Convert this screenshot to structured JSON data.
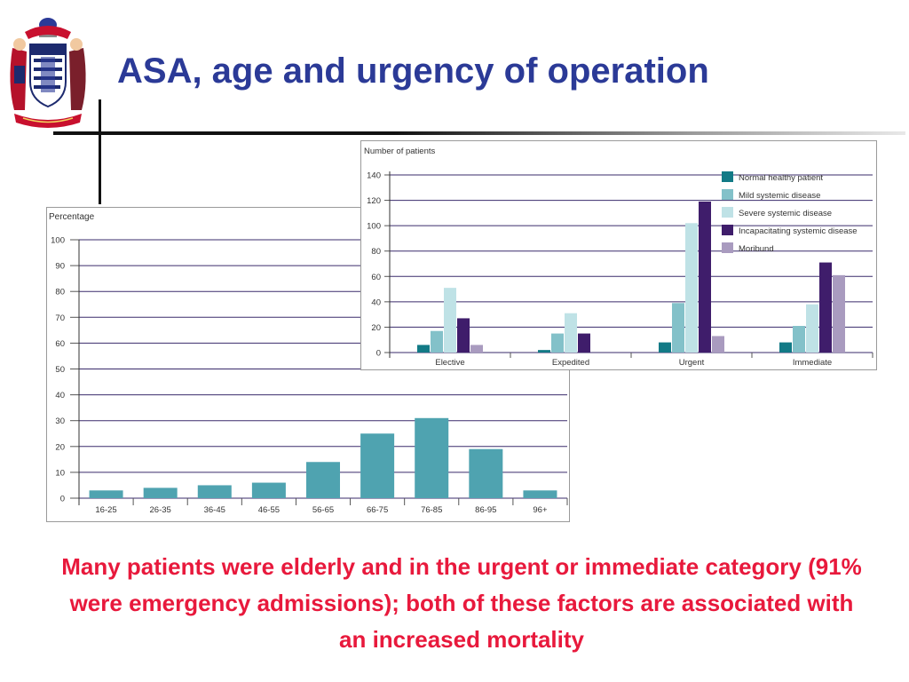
{
  "title": "ASA, age and urgency of operation",
  "caption": "Many patients were elderly and in the urgent or immediate category (91% were emergency admissions); both of these factors are associated with an increased mortality",
  "logo": {
    "name": "coat-of-arms-logo"
  },
  "chart_data": [
    {
      "id": "age-chart",
      "type": "bar",
      "ylabel": "Percentage",
      "ylim": [
        0,
        100
      ],
      "yticks": [
        0,
        10,
        20,
        30,
        40,
        50,
        60,
        70,
        80,
        90,
        100
      ],
      "grid": true,
      "categories": [
        "16-25",
        "26-35",
        "36-45",
        "46-55",
        "56-65",
        "66-75",
        "76-85",
        "86-95",
        "96+"
      ],
      "values": [
        3,
        4,
        5,
        6,
        14,
        25,
        31,
        19,
        3
      ],
      "color": "#4fa3b0"
    },
    {
      "id": "asa-chart",
      "type": "bar",
      "ylabel": "Number of patients",
      "ylim": [
        0,
        140
      ],
      "yticks": [
        0,
        20,
        40,
        60,
        80,
        100,
        120,
        140
      ],
      "grid": true,
      "legend_position": "top-right",
      "categories": [
        "Elective",
        "Expedited",
        "Urgent",
        "Immediate"
      ],
      "series": [
        {
          "name": "Normal healthy patient",
          "values": [
            6,
            2,
            8,
            8
          ],
          "color": "#127a86"
        },
        {
          "name": "Mild systemic disease",
          "values": [
            17,
            15,
            39,
            21
          ],
          "color": "#83c1c9"
        },
        {
          "name": "Severe systemic disease",
          "values": [
            51,
            31,
            102,
            38
          ],
          "color": "#bfe2e6"
        },
        {
          "name": "Incapacitating systemic disease",
          "values": [
            27,
            15,
            119,
            71
          ],
          "color": "#3f1d6b"
        },
        {
          "name": "Moribund",
          "values": [
            6,
            0,
            13,
            61
          ],
          "color": "#a99bbf"
        }
      ]
    }
  ]
}
